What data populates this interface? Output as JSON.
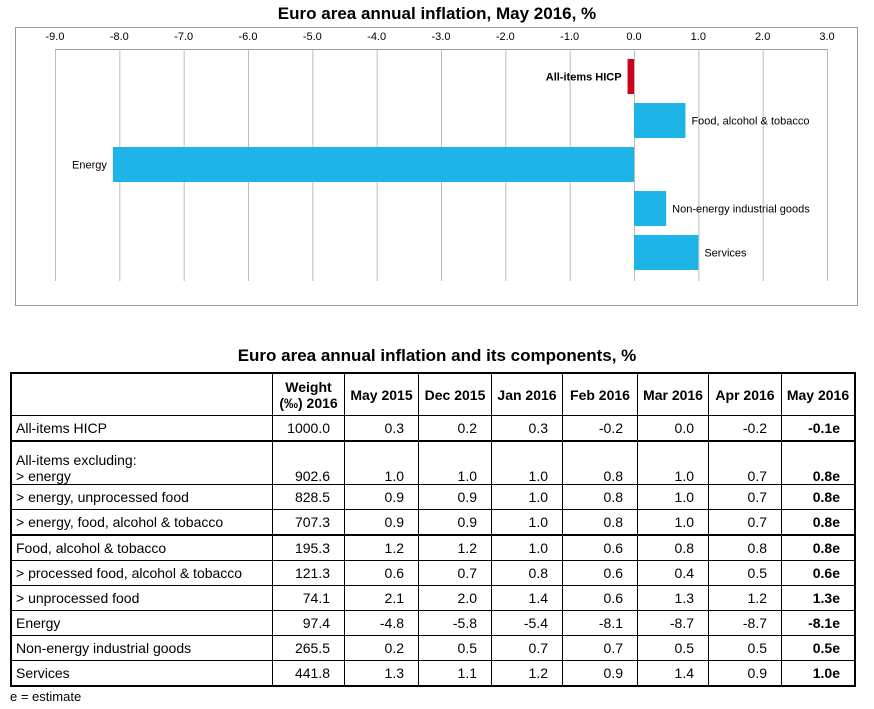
{
  "chart_data": {
    "type": "bar",
    "orientation": "horizontal",
    "title": "Euro area annual inflation, May 2016, %",
    "categories": [
      "All-items HICP",
      "Food, alcohol & tobacco",
      "Energy",
      "Non-energy industrial goods",
      "Services"
    ],
    "values": [
      -0.1,
      0.8,
      -8.1,
      0.5,
      1.0
    ],
    "colors": [
      "#d0021b",
      "#1fb4e8",
      "#1fb4e8",
      "#1fb4e8",
      "#1fb4e8"
    ],
    "xlim": [
      -9.0,
      3.0
    ],
    "ticks": [
      "-9.0",
      "-8.0",
      "-7.0",
      "-6.0",
      "-5.0",
      "-4.0",
      "-3.0",
      "-2.0",
      "-1.0",
      "0.0",
      "1.0",
      "2.0",
      "3.0"
    ],
    "grid": true,
    "xlabel": "",
    "ylabel": ""
  },
  "table": {
    "title": "Euro area annual inflation and its components, %",
    "headers": [
      "",
      "Weight (‰) 2016",
      "May 2015",
      "Dec 2015",
      "Jan 2016",
      "Feb 2016",
      "Mar 2016",
      "Apr 2016",
      "May 2016"
    ],
    "rows": [
      {
        "label": "All-items HICP",
        "values": [
          "1000.0",
          "0.3",
          "0.2",
          "0.3",
          "-0.2",
          "0.0",
          "-0.2",
          "-0.1e"
        ],
        "thick": false
      },
      {
        "prefix": "All-items excluding:",
        "label": "> energy",
        "values": [
          "902.6",
          "1.0",
          "1.0",
          "1.0",
          "0.8",
          "1.0",
          "0.7",
          "0.8e"
        ],
        "thick": true
      },
      {
        "label": "> energy, unprocessed food",
        "values": [
          "828.5",
          "0.9",
          "0.9",
          "1.0",
          "0.8",
          "1.0",
          "0.7",
          "0.8e"
        ],
        "thick": false
      },
      {
        "label": "> energy, food, alcohol & tobacco",
        "values": [
          "707.3",
          "0.9",
          "0.9",
          "1.0",
          "0.8",
          "1.0",
          "0.7",
          "0.8e"
        ],
        "thick": false
      },
      {
        "label": "Food, alcohol & tobacco",
        "values": [
          "195.3",
          "1.2",
          "1.2",
          "1.0",
          "0.6",
          "0.8",
          "0.8",
          "0.8e"
        ],
        "thick": true
      },
      {
        "label": "> processed food, alcohol & tobacco",
        "values": [
          "121.3",
          "0.6",
          "0.7",
          "0.8",
          "0.6",
          "0.4",
          "0.5",
          "0.6e"
        ],
        "thick": false
      },
      {
        "label": "> unprocessed food",
        "values": [
          "74.1",
          "2.1",
          "2.0",
          "1.4",
          "0.6",
          "1.3",
          "1.2",
          "1.3e"
        ],
        "thick": false
      },
      {
        "label": "Energy",
        "values": [
          "97.4",
          "-4.8",
          "-5.8",
          "-5.4",
          "-8.1",
          "-8.7",
          "-8.7",
          "-8.1e"
        ],
        "thick": false
      },
      {
        "label": "Non-energy industrial goods",
        "values": [
          "265.5",
          "0.2",
          "0.5",
          "0.7",
          "0.7",
          "0.5",
          "0.5",
          "0.5e"
        ],
        "thick": false
      },
      {
        "label": "Services",
        "values": [
          "441.8",
          "1.3",
          "1.1",
          "1.2",
          "0.9",
          "1.4",
          "0.9",
          "1.0e"
        ],
        "thick": false
      }
    ],
    "footnote": "e = estimate"
  }
}
